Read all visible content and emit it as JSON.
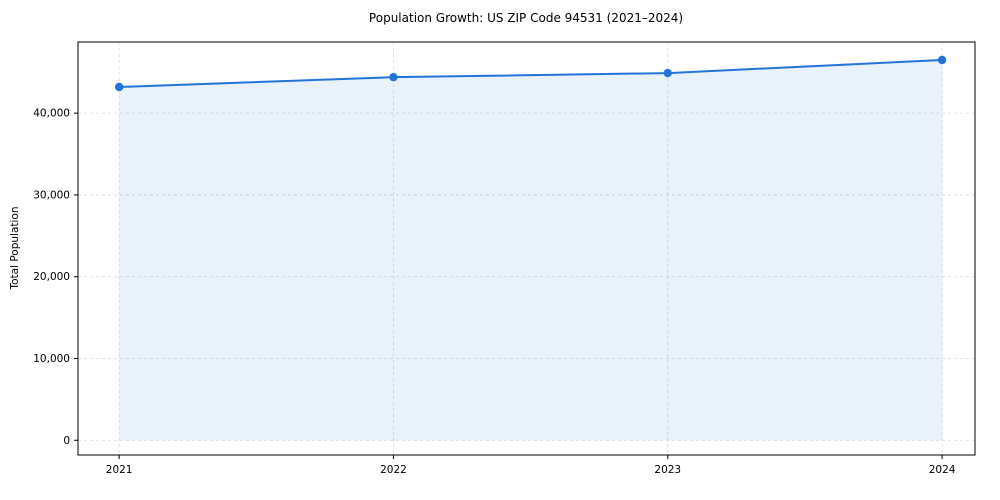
{
  "chart_data": {
    "type": "line",
    "title": "Population Growth: US ZIP Code 94531 (2021–2024)",
    "xlabel": "",
    "ylabel": "Total Population",
    "x": [
      2021,
      2022,
      2023,
      2024
    ],
    "series": [
      {
        "name": "Total Population",
        "values": [
          43200,
          44400,
          44900,
          46500
        ]
      }
    ],
    "area_fill": true,
    "grid": true,
    "legend": "none",
    "xlim": [
      2020.85,
      2024.12
    ],
    "ylim": [
      -1800,
      48700
    ],
    "yticks": [
      0,
      10000,
      20000,
      30000,
      40000
    ],
    "ytick_labels": [
      "0",
      "10,000",
      "20,000",
      "30,000",
      "40,000"
    ],
    "xticks": [
      2021,
      2022,
      2023,
      2024
    ],
    "xtick_labels": [
      "2021",
      "2022",
      "2023",
      "2024"
    ],
    "colors": {
      "line": "#2474d8",
      "marker": "#2474d8",
      "area": "rgba(36,116,216,0.10)",
      "grid": "#d9d9d9",
      "frame": "#000000",
      "background": "#ffffff"
    }
  }
}
